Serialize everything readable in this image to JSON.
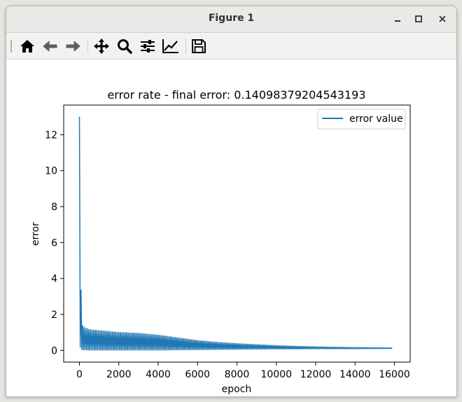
{
  "window": {
    "title": "Figure 1",
    "controls": [
      "minimize",
      "maximize",
      "close"
    ]
  },
  "toolbar": {
    "buttons": [
      {
        "name": "home",
        "icon": "home-icon"
      },
      {
        "name": "back",
        "icon": "arrow-left-icon"
      },
      {
        "name": "forward",
        "icon": "arrow-right-icon"
      },
      {
        "name": "pan",
        "icon": "move-icon"
      },
      {
        "name": "zoom",
        "icon": "magnifier-icon"
      },
      {
        "name": "configure-subplots",
        "icon": "sliders-icon"
      },
      {
        "name": "edit-axis",
        "icon": "line-chart-icon"
      },
      {
        "name": "save",
        "icon": "floppy-icon"
      }
    ]
  },
  "colors": {
    "series": "#1f77b4",
    "axis": "#000000"
  },
  "chart_data": {
    "type": "line",
    "title": "error rate - final error: 0.14098379204543193",
    "xlabel": "epoch",
    "ylabel": "error",
    "xlim": [
      -800,
      16800
    ],
    "ylim": [
      -0.65,
      13.65
    ],
    "xticks": [
      0,
      2000,
      4000,
      6000,
      8000,
      10000,
      12000,
      14000,
      16000
    ],
    "yticks": [
      0,
      2,
      4,
      6,
      8,
      10,
      12
    ],
    "legend": {
      "location": "top-right"
    },
    "grid": false,
    "series": [
      {
        "name": "error value",
        "x": [
          0,
          30,
          100,
          200,
          500,
          1000,
          2000,
          3000,
          4000,
          5000,
          6000,
          7000,
          8000,
          9000,
          10000,
          11000,
          12000,
          13000,
          14000,
          15000,
          15900
        ],
        "y_max": [
          13.0,
          8.0,
          1.5,
          1.3,
          1.15,
          1.1,
          1.0,
          0.95,
          0.85,
          0.7,
          0.55,
          0.45,
          0.38,
          0.32,
          0.27,
          0.23,
          0.2,
          0.18,
          0.16,
          0.15,
          0.14
        ],
        "y_min": [
          0.3,
          0.2,
          0.05,
          0.03,
          0.02,
          0.02,
          0.02,
          0.02,
          0.02,
          0.03,
          0.04,
          0.05,
          0.06,
          0.07,
          0.08,
          0.08,
          0.09,
          0.09,
          0.09,
          0.1,
          0.1
        ]
      }
    ]
  }
}
